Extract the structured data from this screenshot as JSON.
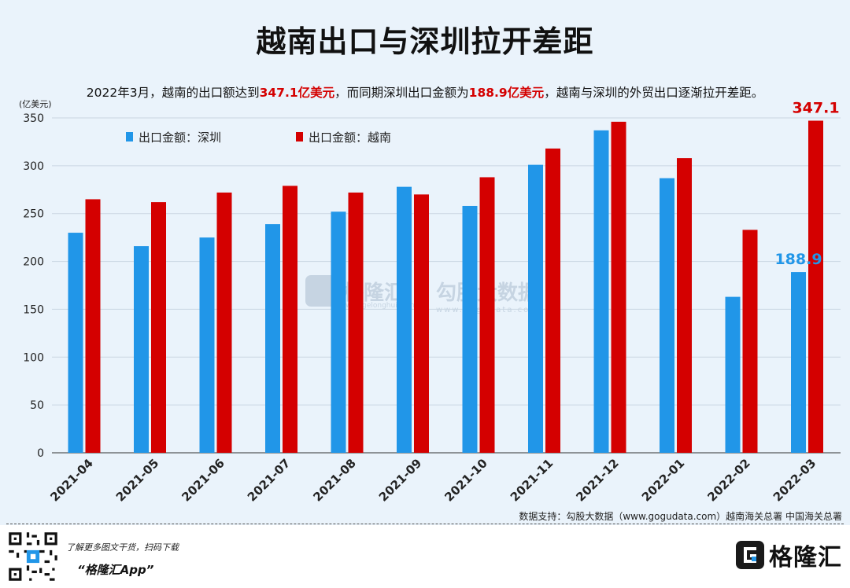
{
  "header": {
    "title": "越南出口与深圳拉开差距",
    "subtitle_part1": "2022年3月，越南的出口额达到",
    "subtitle_hl1": "347.1亿美元",
    "subtitle_part2": "，而同期深圳出口金额为",
    "subtitle_hl2": "188.9亿美元",
    "subtitle_part3": "，越南与深圳的外贸出口逐渐拉开差距。"
  },
  "chart_data": {
    "type": "bar",
    "title": "越南出口与深圳拉开差距",
    "ylabel": "(亿美元)",
    "xlabel": "",
    "ylim": [
      0,
      350
    ],
    "yticks": [
      0,
      50,
      100,
      150,
      200,
      250,
      300,
      350
    ],
    "grid": true,
    "legend_position": "top-left",
    "categories": [
      "2021-04",
      "2021-05",
      "2021-06",
      "2021-07",
      "2021-08",
      "2021-09",
      "2021-10",
      "2021-11",
      "2021-12",
      "2022-01",
      "2022-02",
      "2022-03"
    ],
    "series": [
      {
        "name": "出口金额：深圳",
        "color": "#2196e8",
        "values": [
          230,
          216,
          225,
          239,
          252,
          278,
          258,
          301,
          337,
          287,
          163,
          188.9
        ]
      },
      {
        "name": "出口金额：越南",
        "color": "#d40000",
        "values": [
          265,
          262,
          272,
          279,
          272,
          270,
          288,
          318,
          346,
          308,
          233,
          347.1
        ]
      }
    ],
    "annotations": [
      {
        "series": 0,
        "index": 11,
        "text": "188.9"
      },
      {
        "series": 1,
        "index": 11,
        "text": "347.1"
      }
    ]
  },
  "source": "数据支持：勾股大数据（www.gogudata.com）越南海关总署 中国海关总署",
  "footer": {
    "promo_line1": "了解更多图文干货，扫码下载",
    "promo_line2": "“格隆汇App”",
    "logo_text": "格隆汇"
  },
  "watermark": {
    "text1": "格隆汇",
    "sub1": "www.gelonghui.com",
    "text2": "勾股大数据",
    "sub2": "www.gogudata.com"
  },
  "colors": {
    "shenzhen": "#2196e8",
    "vietnam": "#d40000",
    "background": "#eaf3fb"
  }
}
